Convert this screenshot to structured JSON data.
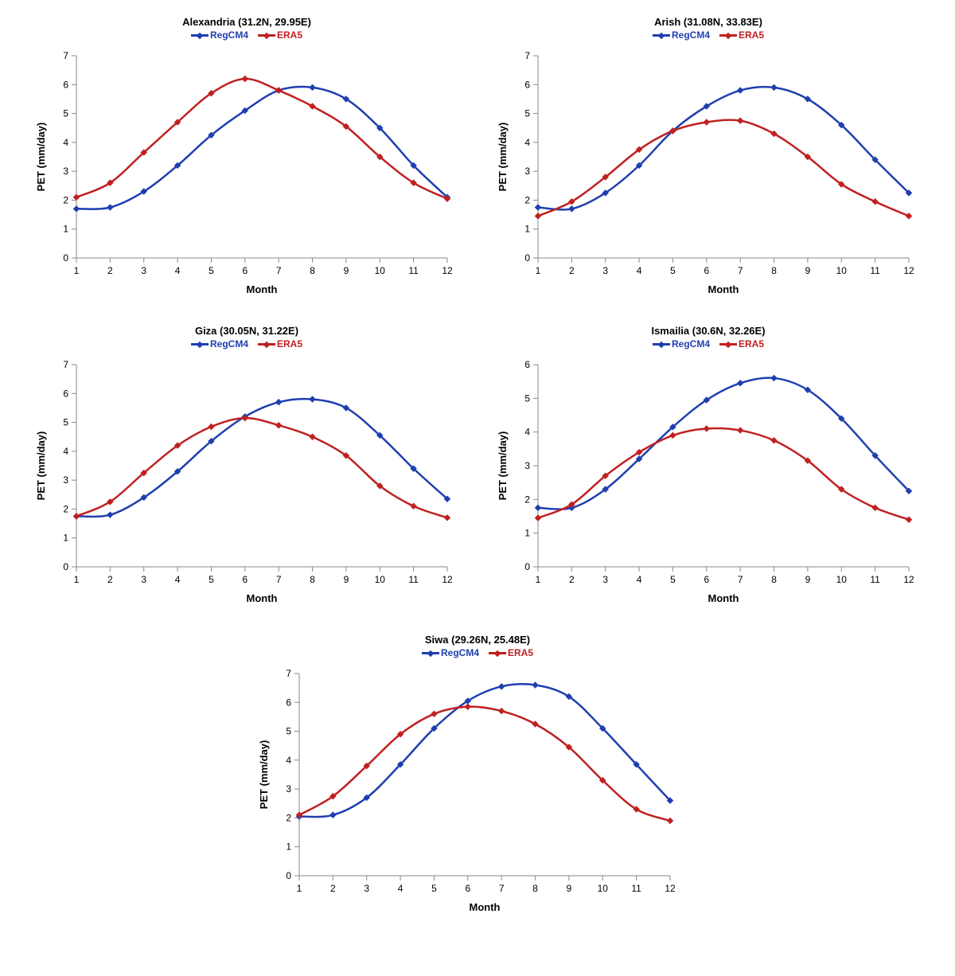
{
  "colors": {
    "regcm4": "#1f3fb0",
    "era5": "#c02020",
    "axis": "#888888",
    "text": "#000000",
    "background": "#ffffff"
  },
  "typography": {
    "title_fontsize": 13,
    "legend_fontsize": 12,
    "tick_fontsize": 12,
    "axis_label_fontsize": 13,
    "font_family": "Arial"
  },
  "legend": {
    "items": [
      {
        "label": "RegCM4",
        "color_key": "regcm4"
      },
      {
        "label": "ERA5",
        "color_key": "era5"
      }
    ]
  },
  "chart_style": {
    "line_width": 2.5,
    "marker_style": "diamond",
    "marker_size": 6,
    "grid": false,
    "aspect_ratio_wh": 1.7
  },
  "charts": [
    {
      "id": "alexandria",
      "title": "Alexandria (31.2N, 29.95E)",
      "type": "line",
      "xlabel": "Month",
      "ylabel": "PET (mm/day)",
      "x_ticks": [
        1,
        2,
        3,
        4,
        5,
        6,
        7,
        8,
        9,
        10,
        11,
        12
      ],
      "ylim": [
        0,
        7
      ],
      "ytick_step": 1,
      "series": {
        "regcm4": [
          1.7,
          1.75,
          2.3,
          3.2,
          4.25,
          5.1,
          5.8,
          5.9,
          5.5,
          4.5,
          3.2,
          2.1
        ],
        "era5": [
          2.1,
          2.6,
          3.65,
          4.7,
          5.7,
          6.2,
          5.8,
          5.25,
          4.55,
          3.5,
          2.6,
          2.05
        ]
      }
    },
    {
      "id": "arish",
      "title": "Arish (31.08N, 33.83E)",
      "type": "line",
      "xlabel": "Month",
      "ylabel": "PET (mm/day)",
      "x_ticks": [
        1,
        2,
        3,
        4,
        5,
        6,
        7,
        8,
        9,
        10,
        11,
        12
      ],
      "ylim": [
        0,
        7
      ],
      "ytick_step": 1,
      "series": {
        "regcm4": [
          1.75,
          1.7,
          2.25,
          3.2,
          4.4,
          5.25,
          5.8,
          5.9,
          5.5,
          4.6,
          3.4,
          2.25
        ],
        "era5": [
          1.45,
          1.95,
          2.8,
          3.75,
          4.4,
          4.7,
          4.75,
          4.3,
          3.5,
          2.55,
          1.95,
          1.45
        ]
      }
    },
    {
      "id": "giza",
      "title": "Giza (30.05N, 31.22E)",
      "type": "line",
      "xlabel": "Month",
      "ylabel": "PET (mm/day)",
      "x_ticks": [
        1,
        2,
        3,
        4,
        5,
        6,
        7,
        8,
        9,
        10,
        11,
        12
      ],
      "ylim": [
        0,
        7
      ],
      "ytick_step": 1,
      "series": {
        "regcm4": [
          1.75,
          1.8,
          2.4,
          3.3,
          4.35,
          5.2,
          5.7,
          5.8,
          5.5,
          4.55,
          3.4,
          2.35
        ],
        "era5": [
          1.75,
          2.25,
          3.25,
          4.2,
          4.85,
          5.15,
          4.9,
          4.5,
          3.85,
          2.8,
          2.1,
          1.7
        ]
      }
    },
    {
      "id": "ismailia",
      "title": "Ismailia (30.6N, 32.26E)",
      "type": "line",
      "xlabel": "Month",
      "ylabel": "PET (mm/day)",
      "x_ticks": [
        1,
        2,
        3,
        4,
        5,
        6,
        7,
        8,
        9,
        10,
        11,
        12
      ],
      "ylim": [
        0,
        6
      ],
      "ytick_step": 1,
      "series": {
        "regcm4": [
          1.75,
          1.75,
          2.3,
          3.2,
          4.15,
          4.95,
          5.45,
          5.6,
          5.25,
          4.4,
          3.3,
          2.25
        ],
        "era5": [
          1.45,
          1.85,
          2.7,
          3.4,
          3.9,
          4.1,
          4.05,
          3.75,
          3.15,
          2.3,
          1.75,
          1.4
        ]
      }
    },
    {
      "id": "siwa",
      "title": "Siwa (29.26N, 25.48E)",
      "type": "line",
      "xlabel": "Month",
      "ylabel": "PET (mm/day)",
      "x_ticks": [
        1,
        2,
        3,
        4,
        5,
        6,
        7,
        8,
        9,
        10,
        11,
        12
      ],
      "ylim": [
        0,
        7
      ],
      "ytick_step": 1,
      "series": {
        "regcm4": [
          2.05,
          2.1,
          2.7,
          3.85,
          5.1,
          6.05,
          6.55,
          6.6,
          6.2,
          5.1,
          3.85,
          2.6
        ],
        "era5": [
          2.1,
          2.75,
          3.8,
          4.9,
          5.6,
          5.85,
          5.7,
          5.25,
          4.45,
          3.3,
          2.3,
          1.9
        ]
      }
    }
  ]
}
